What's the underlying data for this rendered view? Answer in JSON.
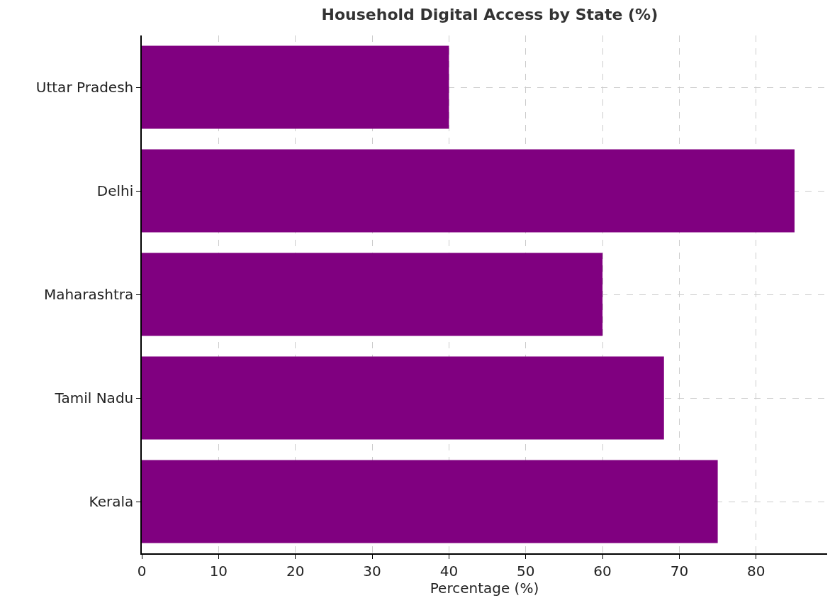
{
  "chart_data": {
    "type": "bar",
    "orientation": "horizontal",
    "title": "Household Digital Access by State (%)",
    "xlabel": "Percentage (%)",
    "categories": [
      "Uttar Pradesh",
      "Delhi",
      "Maharashtra",
      "Tamil Nadu",
      "Kerala"
    ],
    "values": [
      40,
      85,
      60,
      68,
      75
    ],
    "color": "#800080",
    "xlim": [
      0,
      89.25
    ],
    "xticks": [
      0,
      10,
      20,
      30,
      40,
      50,
      60,
      70,
      80
    ],
    "grid": true,
    "legend": false
  }
}
